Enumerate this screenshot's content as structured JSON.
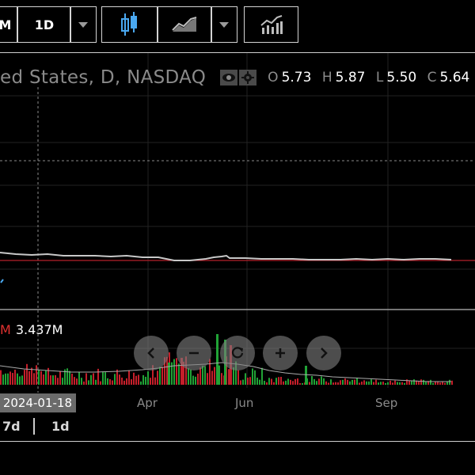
{
  "toolbar": {
    "interval_partial": "M",
    "interval": "1D",
    "interval_menu_icon": "chevron-down-icon",
    "chart_style_icon": "candlestick-icon",
    "chart_style_alt_icon": "line-chart-icon",
    "style_menu_icon": "chevron-down-icon",
    "indicators_icon": "indicators-chart-icon"
  },
  "legend": {
    "symbol_text": "ed States, D, NASDAQ",
    "open_key": "O",
    "open": "5.73",
    "high_key": "H",
    "high": "5.87",
    "low_key": "L",
    "low": "5.50",
    "close_key": "C",
    "close": "5.64"
  },
  "volume_legend": {
    "prefix": "M",
    "value": "3.437M",
    "prefix_color": "#e0312f"
  },
  "nav": {
    "scroll_left_icon": "chevron-left-icon",
    "zoom_out_icon": "minus-icon",
    "reset_icon": "reset-icon",
    "zoom_in_icon": "plus-icon",
    "scroll_right_icon": "chevron-right-icon"
  },
  "x_axis": {
    "cursor_date": "2024-01-18",
    "ticks": [
      "Apr",
      "Jun",
      "Sep"
    ]
  },
  "ranges": {
    "partial": "7d",
    "selected": "1d"
  },
  "colors": {
    "up": "#21a336",
    "down": "#c41f2a",
    "price_line": "#c8c8c8",
    "close_line": "#b3202a"
  }
}
